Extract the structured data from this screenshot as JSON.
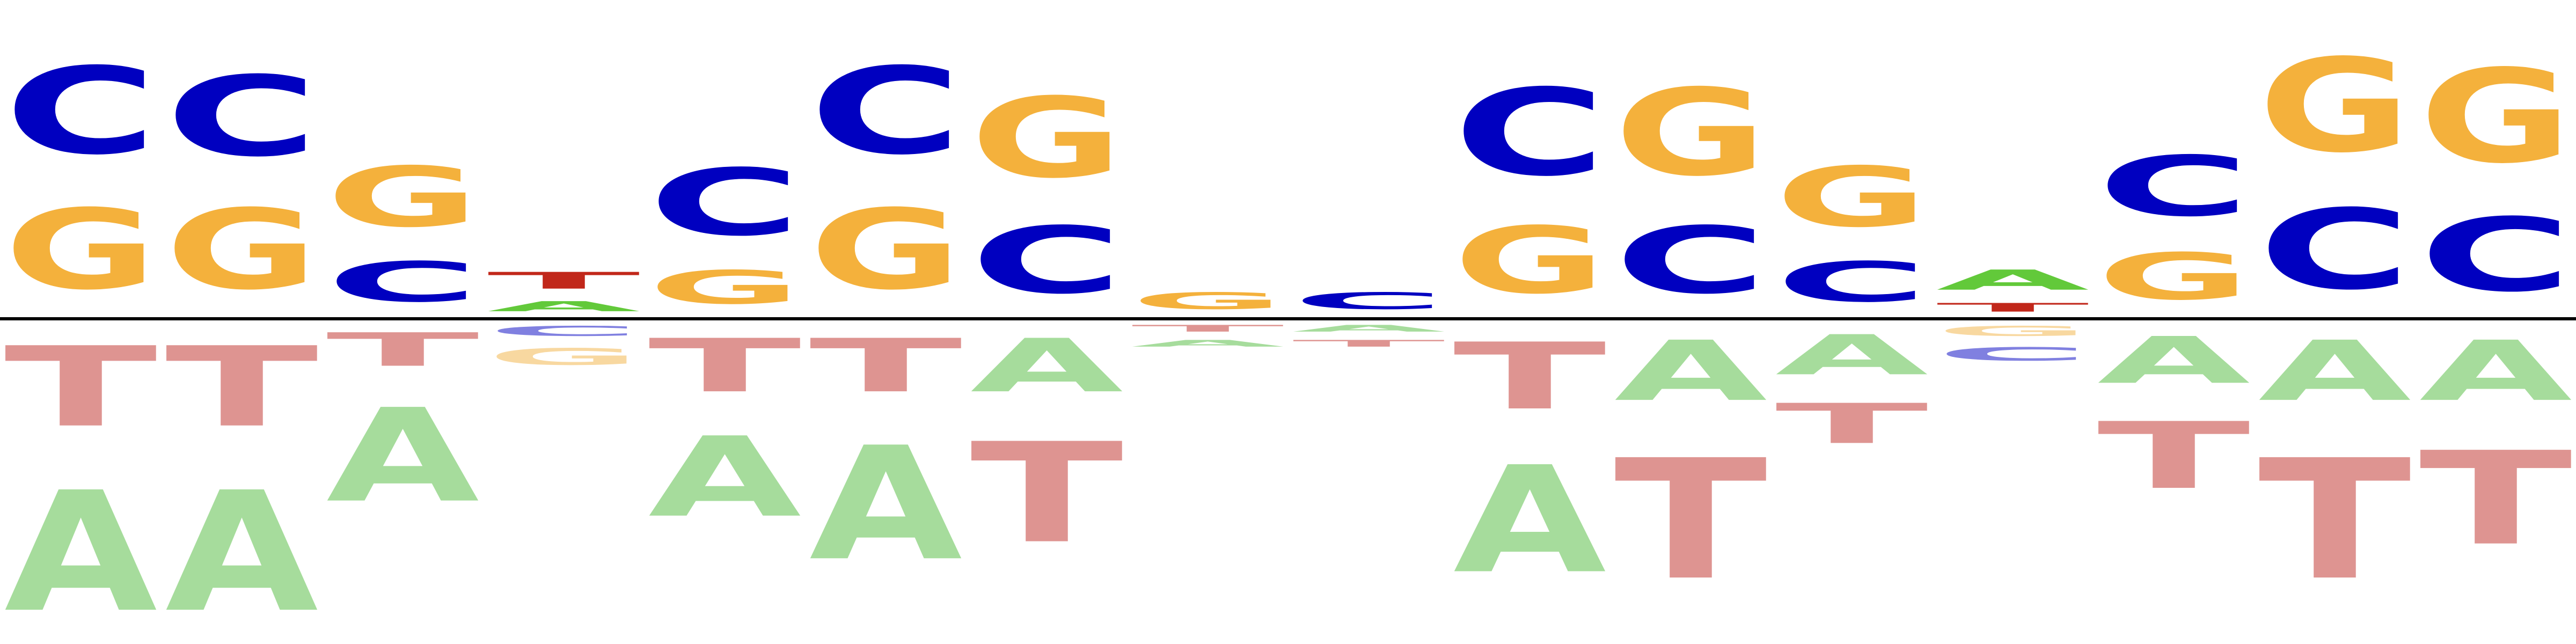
{
  "logo": {
    "colors": {
      "A": "#a6dc9c",
      "C": "#0000c0",
      "G": "#f4b13c",
      "T": "#de9491",
      "A_strong": "#62c93a",
      "T_strong": "#c1271a",
      "C_faint": "#8080e0",
      "G_faint": "#f8d8a0",
      "axis": "#000000"
    },
    "positions": [
      {
        "above": [
          {
            "b": "G",
            "h": 0.12
          },
          {
            "b": "C",
            "h": 0.13
          }
        ],
        "below": [
          {
            "b": "T",
            "h": 0.12
          },
          {
            "b": "A",
            "h": 0.18
          }
        ]
      },
      {
        "above": [
          {
            "b": "G",
            "h": 0.12
          },
          {
            "b": "C",
            "h": 0.12
          }
        ],
        "below": [
          {
            "b": "T",
            "h": 0.12
          },
          {
            "b": "A",
            "h": 0.18
          }
        ]
      },
      {
        "above": [
          {
            "b": "C",
            "h": 0.06
          },
          {
            "b": "G",
            "h": 0.09
          }
        ],
        "below": [
          {
            "b": "T",
            "h": 0.05
          },
          {
            "b": "A",
            "h": 0.14
          }
        ]
      },
      {
        "above": [
          {
            "b": "A",
            "strong": true,
            "h": 0.015
          },
          {
            "b": "T",
            "strong": true,
            "h": 0.025
          }
        ],
        "below": [
          {
            "b": "C",
            "faint": true,
            "h": 0.015
          },
          {
            "b": "G",
            "faint": true,
            "h": 0.025
          }
        ]
      },
      {
        "above": [
          {
            "b": "G",
            "h": 0.05
          },
          {
            "b": "C",
            "h": 0.1
          }
        ],
        "below": [
          {
            "b": "T",
            "h": 0.08
          },
          {
            "b": "A",
            "h": 0.12
          }
        ]
      },
      {
        "above": [
          {
            "b": "G",
            "h": 0.12
          },
          {
            "b": "C",
            "h": 0.13
          }
        ],
        "below": [
          {
            "b": "T",
            "h": 0.08
          },
          {
            "b": "A",
            "h": 0.17
          }
        ]
      },
      {
        "above": [
          {
            "b": "C",
            "h": 0.1
          },
          {
            "b": "G",
            "h": 0.12
          }
        ],
        "below": [
          {
            "b": "A",
            "h": 0.08
          },
          {
            "b": "T",
            "h": 0.15
          }
        ]
      },
      {
        "above": [
          {
            "b": "G",
            "h": 0.025
          }
        ],
        "below": [
          {
            "b": "T",
            "h": 0.01
          },
          {
            "b": "A",
            "h": 0.01
          }
        ]
      },
      {
        "above": [
          {
            "b": "C",
            "h": 0.025
          }
        ],
        "below": [
          {
            "b": "A",
            "h": 0.01
          },
          {
            "b": "T",
            "h": 0.01
          }
        ]
      },
      {
        "above": [
          {
            "b": "G",
            "h": 0.1
          },
          {
            "b": "C",
            "h": 0.13
          }
        ],
        "below": [
          {
            "b": "T",
            "h": 0.1
          },
          {
            "b": "A",
            "h": 0.16
          }
        ]
      },
      {
        "above": [
          {
            "b": "C",
            "h": 0.1
          },
          {
            "b": "G",
            "h": 0.13
          }
        ],
        "below": [
          {
            "b": "A",
            "h": 0.09
          },
          {
            "b": "T",
            "h": 0.18
          }
        ]
      },
      {
        "above": [
          {
            "b": "C",
            "h": 0.06
          },
          {
            "b": "G",
            "h": 0.09
          }
        ],
        "below": [
          {
            "b": "A",
            "h": 0.06
          },
          {
            "b": "T",
            "h": 0.06
          }
        ]
      },
      {
        "above": [
          {
            "b": "T",
            "strong": true,
            "h": 0.013
          },
          {
            "b": "A",
            "strong": true,
            "h": 0.03
          }
        ],
        "below": [
          {
            "b": "G",
            "faint": true,
            "h": 0.015
          },
          {
            "b": "C",
            "faint": true,
            "h": 0.02
          }
        ]
      },
      {
        "above": [
          {
            "b": "G",
            "h": 0.07
          },
          {
            "b": "C",
            "h": 0.09
          }
        ],
        "below": [
          {
            "b": "A",
            "h": 0.07
          },
          {
            "b": "T",
            "h": 0.1
          }
        ]
      },
      {
        "above": [
          {
            "b": "C",
            "h": 0.12
          },
          {
            "b": "G",
            "h": 0.14
          }
        ],
        "below": [
          {
            "b": "A",
            "h": 0.09
          },
          {
            "b": "T",
            "h": 0.18
          }
        ]
      },
      {
        "above": [
          {
            "b": "C",
            "h": 0.11
          },
          {
            "b": "G",
            "h": 0.14
          }
        ],
        "below": [
          {
            "b": "A",
            "h": 0.09
          },
          {
            "b": "T",
            "h": 0.14
          }
        ]
      }
    ]
  }
}
